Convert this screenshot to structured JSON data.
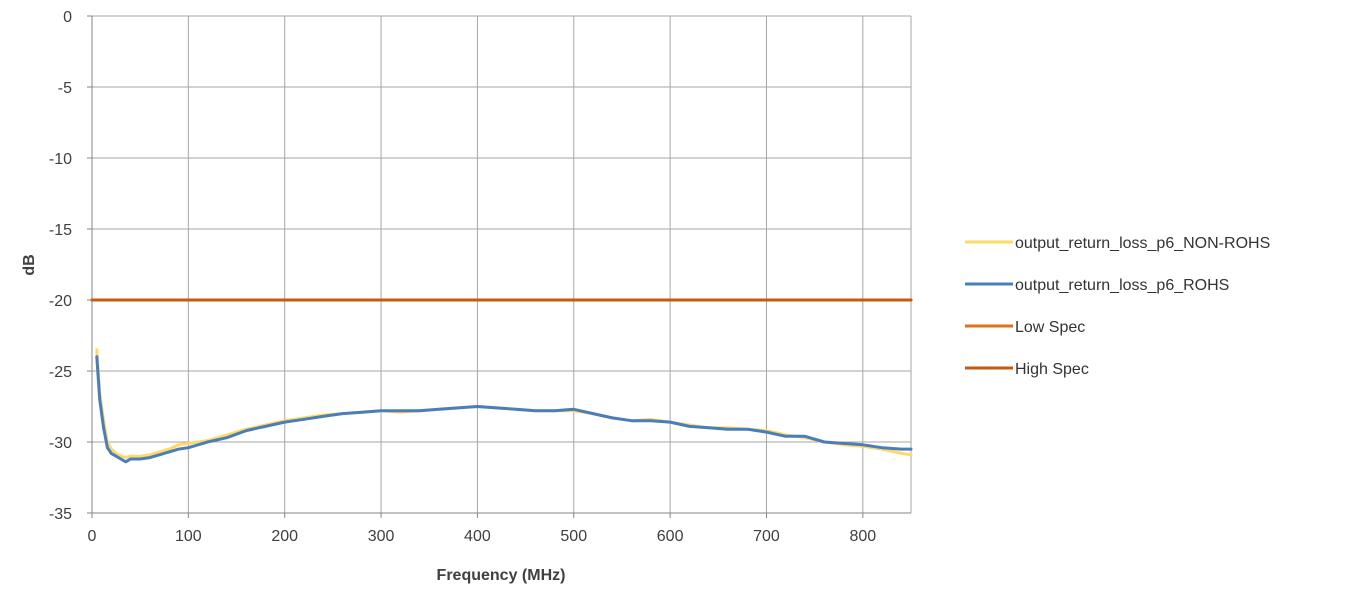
{
  "chart_data": {
    "type": "line",
    "title": "",
    "xlabel": "Frequency (MHz)",
    "ylabel": "dB",
    "xlim": [
      0,
      850
    ],
    "ylim": [
      -35,
      0
    ],
    "x_ticks": [
      0,
      100,
      200,
      300,
      400,
      500,
      600,
      700,
      800
    ],
    "y_ticks": [
      0,
      -5,
      -10,
      -15,
      -20,
      -25,
      -30,
      -35
    ],
    "grid": true,
    "legend_position": "right",
    "series": [
      {
        "name": "output_return_loss_p6_NON-ROHS",
        "color": "#FFD966",
        "x": [
          5,
          8,
          12,
          16,
          20,
          25,
          30,
          35,
          40,
          50,
          60,
          70,
          80,
          90,
          100,
          110,
          120,
          140,
          160,
          180,
          200,
          220,
          240,
          260,
          280,
          300,
          320,
          340,
          360,
          380,
          400,
          420,
          440,
          460,
          480,
          500,
          520,
          540,
          560,
          580,
          600,
          620,
          640,
          660,
          680,
          700,
          720,
          740,
          760,
          780,
          800,
          820,
          840,
          850
        ],
        "y": [
          -23.5,
          -26.5,
          -28.5,
          -30.0,
          -30.5,
          -30.8,
          -31.0,
          -31.1,
          -31.0,
          -31.0,
          -30.9,
          -30.7,
          -30.5,
          -30.2,
          -30.1,
          -30.0,
          -29.9,
          -29.5,
          -29.1,
          -28.8,
          -28.5,
          -28.3,
          -28.1,
          -28.0,
          -27.9,
          -27.8,
          -27.9,
          -27.8,
          -27.7,
          -27.6,
          -27.5,
          -27.6,
          -27.7,
          -27.8,
          -27.8,
          -27.8,
          -28.0,
          -28.3,
          -28.5,
          -28.4,
          -28.6,
          -28.8,
          -29.0,
          -29.0,
          -29.1,
          -29.2,
          -29.5,
          -29.7,
          -30.0,
          -30.2,
          -30.3,
          -30.5,
          -30.8,
          -30.9
        ]
      },
      {
        "name": "output_return_loss_p6_ROHS",
        "color": "#4A7EBB",
        "x": [
          5,
          8,
          12,
          16,
          20,
          25,
          30,
          35,
          40,
          50,
          60,
          70,
          80,
          90,
          100,
          110,
          120,
          140,
          160,
          180,
          200,
          220,
          240,
          260,
          280,
          300,
          320,
          340,
          360,
          380,
          400,
          420,
          440,
          460,
          480,
          500,
          520,
          540,
          560,
          580,
          600,
          620,
          640,
          660,
          680,
          700,
          720,
          740,
          760,
          780,
          800,
          820,
          840,
          850
        ],
        "y": [
          -24.0,
          -27.0,
          -29.0,
          -30.4,
          -30.8,
          -31.0,
          -31.2,
          -31.4,
          -31.2,
          -31.2,
          -31.1,
          -30.9,
          -30.7,
          -30.5,
          -30.4,
          -30.2,
          -30.0,
          -29.7,
          -29.2,
          -28.9,
          -28.6,
          -28.4,
          -28.2,
          -28.0,
          -27.9,
          -27.8,
          -27.8,
          -27.8,
          -27.7,
          -27.6,
          -27.5,
          -27.6,
          -27.7,
          -27.8,
          -27.8,
          -27.7,
          -28.0,
          -28.3,
          -28.5,
          -28.5,
          -28.6,
          -28.9,
          -29.0,
          -29.1,
          -29.1,
          -29.3,
          -29.6,
          -29.6,
          -30.0,
          -30.1,
          -30.2,
          -30.4,
          -30.5,
          -30.5
        ]
      },
      {
        "name": "Low Spec",
        "color": "#E07020",
        "x": [
          0,
          850
        ],
        "y": [
          -20,
          -20
        ]
      },
      {
        "name": "High Spec",
        "color": "#C55A11",
        "x": [
          0,
          850
        ],
        "y": [
          -20,
          -20
        ]
      }
    ]
  }
}
